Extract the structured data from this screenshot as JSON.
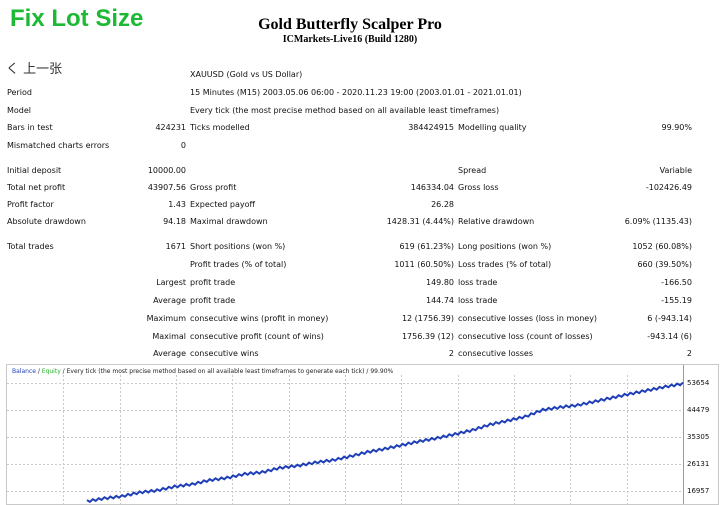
{
  "badge": "Fix Lot Size",
  "title": "Gold Butterfly Scalper Pro",
  "subtitle": "ICMarkets-Live16 (Build 1280)",
  "back_label": "く 上一张",
  "symbol": "XAUUSD (Gold vs US Dollar)",
  "period_label": "Period",
  "period_value": "15 Minutes (M15) 2003.05.06 06:00 - 2020.11.23 19:00 (2003.01.01 - 2021.01.01)",
  "model_label": "Model",
  "model_value": "Every tick (the most precise method based on all available least timeframes)",
  "bars_label": "Bars in test",
  "bars_value": "424231",
  "ticks_label": "Ticks modelled",
  "ticks_value": "384424915",
  "quality_label": "Modelling quality",
  "quality_value": "99.90%",
  "mismatch_label": "Mismatched charts errors",
  "mismatch_value": "0",
  "deposit_label": "Initial deposit",
  "deposit_value": "10000.00",
  "spread_label": "Spread",
  "spread_value": "Variable",
  "netprofit_label": "Total net profit",
  "netprofit_value": "43907.56",
  "grossprofit_label": "Gross profit",
  "grossprofit_value": "146334.04",
  "grossloss_label": "Gross loss",
  "grossloss_value": "-102426.49",
  "pf_label": "Profit factor",
  "pf_value": "1.43",
  "ep_label": "Expected payoff",
  "ep_value": "26.28",
  "absdd_label": "Absolute drawdown",
  "absdd_value": "94.18",
  "maxdd_label": "Maximal drawdown",
  "maxdd_value": "1428.31 (4.44%)",
  "reldd_label": "Relative drawdown",
  "reldd_value": "6.09% (1135.43)",
  "trades_label": "Total trades",
  "trades_value": "1671",
  "short_label": "Short positions (won %)",
  "short_value": "619 (61.23%)",
  "long_label": "Long positions (won %)",
  "long_value": "1052 (60.08%)",
  "ptrades_label": "Profit trades (% of total)",
  "ptrades_value": "1011 (60.50%)",
  "ltrades_label": "Loss trades (% of total)",
  "ltrades_value": "660 (39.50%)",
  "largest": "Largest",
  "average": "Average",
  "maximum": "Maximum",
  "maximal": "Maximal",
  "lpt_label": "profit trade",
  "lpt_value": "149.80",
  "llt_label": "loss trade",
  "llt_value": "-166.50",
  "apt_label": "profit trade",
  "apt_value": "144.74",
  "alt_label": "loss trade",
  "alt_value": "-155.19",
  "mcw_label": "consecutive wins (profit in money)",
  "mcw_value": "12 (1756.39)",
  "mcl_label": "consecutive losses (loss in money)",
  "mcl_value": "6 (-943.14)",
  "mcp_label": "consecutive profit (count of wins)",
  "mcp_value": "1756.39 (12)",
  "mclc_label": "consecutive loss (count of losses)",
  "mclc_value": "-943.14 (6)",
  "acw_label": "consecutive wins",
  "acw_value": "2",
  "acl_label": "consecutive losses",
  "acl_value": "2",
  "chart_data": {
    "type": "line",
    "legend_balance": "Balance",
    "legend_sep": " / ",
    "legend_equity": "Equity",
    "legend_rest": " / Every tick (the most precise method based on all available least timeframes to generate each tick) / 99.90%",
    "yticks": [
      53654,
      44479,
      35305,
      26131,
      16957
    ],
    "ylim": [
      12000,
      56500
    ],
    "grid": true,
    "series": [
      {
        "name": "Balance",
        "color": "#1f3fb8",
        "values": [
          13500,
          14500,
          15200,
          16500,
          17200,
          18500,
          19300,
          20700,
          21500,
          22800,
          23400,
          24900,
          25600,
          26700,
          27500,
          28800,
          30300,
          31400,
          32700,
          34000,
          35100,
          36400,
          37800,
          39700,
          41000,
          42400,
          44700,
          45600,
          46300,
          47600,
          48900,
          50200,
          51400,
          52600,
          53654
        ]
      }
    ]
  }
}
